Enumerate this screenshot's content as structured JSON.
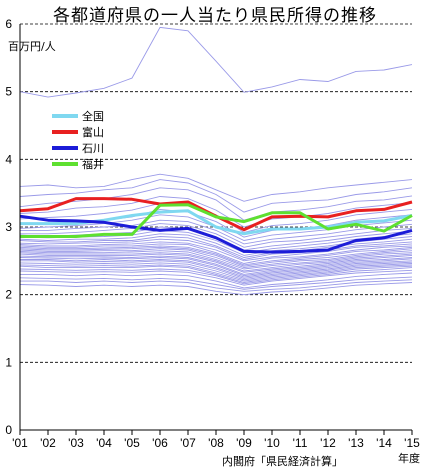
{
  "chart_data": {
    "type": "line",
    "title": "各都道府県の一人当たり県民所得の推移",
    "y_unit": "百万円/人",
    "x_unit": "年度",
    "source": "内閣府「県民経済計算」",
    "x": [
      "'01",
      "'02",
      "'03",
      "'04",
      "'05",
      "'06",
      "'07",
      "'08",
      "'09",
      "'10",
      "'11",
      "'12",
      "'13",
      "'14",
      "'15"
    ],
    "ylim": [
      0,
      6
    ],
    "yticks": [
      0,
      1,
      2,
      3,
      4,
      5,
      6
    ],
    "grid": "horizontal-dashed",
    "legend_position": "top-left",
    "series": [
      {
        "name": "全国",
        "color": "#7fd8f0",
        "values": [
          3.05,
          3.05,
          3.05,
          3.1,
          3.17,
          3.22,
          3.24,
          3.0,
          2.9,
          2.97,
          2.97,
          3.0,
          3.07,
          3.09,
          3.17
        ]
      },
      {
        "name": "富山",
        "color": "#e82020",
        "values": [
          3.24,
          3.27,
          3.42,
          3.42,
          3.41,
          3.34,
          3.37,
          3.16,
          2.96,
          3.15,
          3.16,
          3.15,
          3.24,
          3.26,
          3.37
        ]
      },
      {
        "name": "石川",
        "color": "#1c1cd8",
        "values": [
          3.16,
          3.1,
          3.09,
          3.07,
          3.0,
          2.95,
          2.98,
          2.84,
          2.64,
          2.63,
          2.64,
          2.66,
          2.8,
          2.84,
          2.95
        ]
      },
      {
        "name": "福井",
        "color": "#5ee030",
        "values": [
          2.86,
          2.86,
          2.86,
          2.89,
          2.89,
          3.32,
          3.33,
          3.15,
          3.08,
          3.21,
          3.21,
          2.97,
          3.04,
          2.94,
          3.17
        ]
      }
    ],
    "other_prefectures": [
      [
        5.0,
        4.92,
        4.98,
        5.05,
        5.2,
        5.95,
        5.9,
        5.45,
        4.99,
        5.07,
        5.18,
        5.15,
        5.3,
        5.32,
        5.4
      ],
      [
        3.6,
        3.62,
        3.58,
        3.6,
        3.7,
        3.78,
        3.72,
        3.55,
        3.38,
        3.48,
        3.52,
        3.58,
        3.62,
        3.66,
        3.7
      ],
      [
        3.45,
        3.48,
        3.5,
        3.55,
        3.58,
        3.7,
        3.65,
        3.48,
        3.22,
        3.35,
        3.38,
        3.4,
        3.48,
        3.52,
        3.58
      ],
      [
        3.3,
        3.35,
        3.38,
        3.42,
        3.48,
        3.58,
        3.55,
        3.4,
        3.1,
        3.22,
        3.25,
        3.3,
        3.38,
        3.4,
        3.46
      ],
      [
        3.2,
        3.22,
        3.28,
        3.3,
        3.35,
        3.45,
        3.42,
        3.25,
        3.0,
        3.12,
        3.15,
        3.2,
        3.28,
        3.32,
        3.36
      ],
      [
        3.12,
        3.14,
        3.16,
        3.2,
        3.25,
        3.35,
        3.32,
        3.18,
        2.92,
        3.02,
        3.05,
        3.1,
        3.18,
        3.22,
        3.26
      ],
      [
        3.05,
        3.06,
        3.08,
        3.1,
        3.15,
        3.26,
        3.22,
        3.08,
        2.85,
        2.95,
        2.98,
        3.02,
        3.1,
        3.14,
        3.18
      ],
      [
        2.98,
        3.0,
        3.02,
        3.05,
        3.1,
        3.18,
        3.15,
        3.0,
        2.8,
        2.88,
        2.92,
        2.96,
        3.02,
        3.06,
        3.1
      ],
      [
        2.95,
        2.95,
        2.98,
        3.0,
        3.02,
        3.1,
        3.08,
        2.95,
        2.75,
        2.82,
        2.86,
        2.9,
        2.96,
        3.0,
        3.04
      ],
      [
        2.9,
        2.9,
        2.92,
        2.95,
        2.98,
        3.05,
        3.02,
        2.9,
        2.7,
        2.78,
        2.8,
        2.85,
        2.9,
        2.95,
        2.98
      ],
      [
        2.88,
        2.86,
        2.88,
        2.9,
        2.92,
        3.0,
        2.98,
        2.85,
        2.66,
        2.72,
        2.76,
        2.8,
        2.86,
        2.9,
        2.94
      ],
      [
        2.85,
        2.84,
        2.85,
        2.86,
        2.88,
        2.95,
        2.92,
        2.8,
        2.62,
        2.68,
        2.72,
        2.76,
        2.82,
        2.86,
        2.9
      ],
      [
        2.82,
        2.8,
        2.82,
        2.82,
        2.84,
        2.9,
        2.88,
        2.76,
        2.58,
        2.65,
        2.68,
        2.72,
        2.78,
        2.82,
        2.86
      ],
      [
        2.8,
        2.78,
        2.78,
        2.8,
        2.8,
        2.86,
        2.84,
        2.72,
        2.55,
        2.62,
        2.65,
        2.7,
        2.75,
        2.78,
        2.82
      ],
      [
        2.76,
        2.75,
        2.76,
        2.77,
        2.78,
        2.82,
        2.8,
        2.7,
        2.52,
        2.6,
        2.62,
        2.66,
        2.72,
        2.75,
        2.78
      ],
      [
        2.74,
        2.72,
        2.72,
        2.74,
        2.75,
        2.78,
        2.76,
        2.66,
        2.5,
        2.56,
        2.6,
        2.64,
        2.7,
        2.72,
        2.75
      ],
      [
        2.72,
        2.7,
        2.7,
        2.72,
        2.72,
        2.75,
        2.74,
        2.62,
        2.46,
        2.54,
        2.56,
        2.6,
        2.66,
        2.7,
        2.72
      ],
      [
        2.7,
        2.68,
        2.68,
        2.69,
        2.7,
        2.72,
        2.7,
        2.6,
        2.44,
        2.5,
        2.54,
        2.58,
        2.64,
        2.66,
        2.7
      ],
      [
        2.68,
        2.66,
        2.66,
        2.67,
        2.68,
        2.7,
        2.68,
        2.58,
        2.42,
        2.48,
        2.52,
        2.55,
        2.6,
        2.64,
        2.68
      ],
      [
        2.66,
        2.64,
        2.64,
        2.65,
        2.65,
        2.68,
        2.66,
        2.55,
        2.4,
        2.45,
        2.5,
        2.52,
        2.58,
        2.62,
        2.65
      ],
      [
        2.64,
        2.62,
        2.62,
        2.62,
        2.63,
        2.65,
        2.63,
        2.52,
        2.38,
        2.43,
        2.47,
        2.5,
        2.56,
        2.6,
        2.62
      ],
      [
        2.62,
        2.6,
        2.6,
        2.6,
        2.6,
        2.62,
        2.6,
        2.5,
        2.35,
        2.4,
        2.45,
        2.48,
        2.54,
        2.57,
        2.6
      ],
      [
        2.6,
        2.58,
        2.58,
        2.58,
        2.58,
        2.6,
        2.58,
        2.48,
        2.33,
        2.38,
        2.42,
        2.46,
        2.52,
        2.55,
        2.58
      ],
      [
        2.57,
        2.56,
        2.56,
        2.56,
        2.55,
        2.57,
        2.55,
        2.45,
        2.3,
        2.36,
        2.4,
        2.44,
        2.5,
        2.52,
        2.55
      ],
      [
        2.55,
        2.54,
        2.53,
        2.54,
        2.53,
        2.55,
        2.53,
        2.43,
        2.28,
        2.34,
        2.38,
        2.42,
        2.48,
        2.5,
        2.53
      ],
      [
        2.52,
        2.52,
        2.5,
        2.52,
        2.5,
        2.52,
        2.5,
        2.4,
        2.26,
        2.32,
        2.36,
        2.4,
        2.46,
        2.48,
        2.5
      ],
      [
        2.5,
        2.5,
        2.48,
        2.49,
        2.48,
        2.5,
        2.48,
        2.38,
        2.24,
        2.3,
        2.34,
        2.38,
        2.44,
        2.46,
        2.48
      ],
      [
        2.47,
        2.46,
        2.45,
        2.46,
        2.45,
        2.47,
        2.45,
        2.35,
        2.22,
        2.28,
        2.32,
        2.36,
        2.42,
        2.44,
        2.46
      ],
      [
        2.44,
        2.43,
        2.42,
        2.43,
        2.42,
        2.44,
        2.42,
        2.32,
        2.2,
        2.26,
        2.3,
        2.34,
        2.4,
        2.42,
        2.44
      ],
      [
        2.42,
        2.4,
        2.4,
        2.4,
        2.4,
        2.42,
        2.4,
        2.3,
        2.18,
        2.24,
        2.28,
        2.32,
        2.38,
        2.4,
        2.42
      ],
      [
        2.38,
        2.37,
        2.36,
        2.37,
        2.36,
        2.38,
        2.36,
        2.28,
        2.16,
        2.22,
        2.26,
        2.3,
        2.35,
        2.37,
        2.4
      ],
      [
        2.35,
        2.34,
        2.33,
        2.34,
        2.33,
        2.35,
        2.33,
        2.25,
        2.14,
        2.2,
        2.24,
        2.28,
        2.32,
        2.34,
        2.36
      ],
      [
        2.3,
        2.3,
        2.28,
        2.3,
        2.28,
        2.3,
        2.28,
        2.2,
        2.1,
        2.15,
        2.18,
        2.22,
        2.27,
        2.3,
        2.32
      ],
      [
        2.25,
        2.24,
        2.23,
        2.24,
        2.22,
        2.24,
        2.22,
        2.15,
        2.08,
        2.12,
        2.15,
        2.18,
        2.22,
        2.24,
        2.26
      ],
      [
        2.2,
        2.2,
        2.18,
        2.2,
        2.18,
        2.2,
        2.18,
        2.1,
        2.05,
        2.08,
        2.1,
        2.14,
        2.18,
        2.2,
        2.22
      ],
      [
        2.15,
        2.14,
        2.12,
        2.14,
        2.12,
        2.14,
        2.12,
        2.05,
        2.0,
        2.04,
        2.06,
        2.1,
        2.14,
        2.16,
        2.18
      ]
    ]
  }
}
